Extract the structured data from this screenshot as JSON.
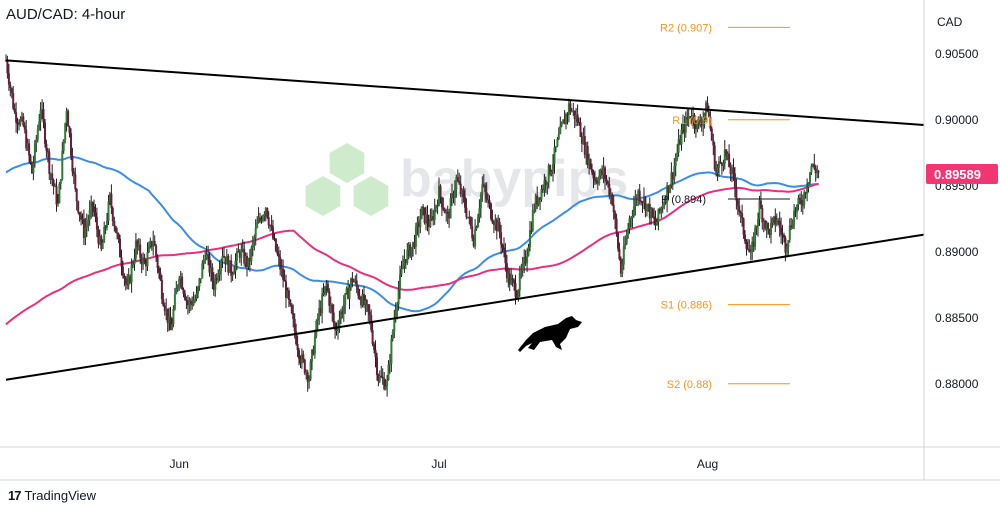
{
  "chart_data": {
    "type": "candlestick",
    "title": "AUD/CAD: 4-hour",
    "currency_label": "CAD",
    "y_ticks": [
      "0.90500",
      "0.90000",
      "0.89500",
      "0.89000",
      "0.88500",
      "0.88000"
    ],
    "x_ticks": [
      "Jun",
      "Jul",
      "Aug"
    ],
    "current_price": "0.89589",
    "current_price_color": "#f23673",
    "ma_fast_color": "#3b8ee8",
    "ma_slow_color": "#ea2f7e",
    "trendline_color": "#000000",
    "level_color": "#f7931a",
    "levels": [
      {
        "label": "R2 (0.907)",
        "value": 0.907
      },
      {
        "label": "R1 (0.9)",
        "value": 0.9
      },
      {
        "label": "P (0.894)",
        "value": 0.894
      },
      {
        "label": "S1 (0.886)",
        "value": 0.886
      },
      {
        "label": "S2 (0.88)",
        "value": 0.88
      }
    ],
    "trendlines": [
      {
        "name": "upper",
        "from": [
          "May 12",
          0.9045
        ],
        "to": [
          "Aug 26",
          0.8996
        ]
      },
      {
        "name": "lower",
        "from": [
          "May 12",
          0.8803
        ],
        "to": [
          "Aug 26",
          0.8913
        ]
      }
    ],
    "ylim": [
      0.8765,
      0.9068
    ],
    "xlim": [
      "May 12",
      "Aug 26"
    ],
    "close_path": [
      [
        "May 12",
        0.9045
      ],
      [
        "May 13",
        0.9005
      ],
      [
        "May 14",
        0.8995
      ],
      [
        "May 15",
        0.896
      ],
      [
        "May 16",
        0.901
      ],
      [
        "May 17",
        0.8965
      ],
      [
        "May 18",
        0.8935
      ],
      [
        "May 19",
        0.901
      ],
      [
        "May 20",
        0.8945
      ],
      [
        "May 21",
        0.8915
      ],
      [
        "May 22",
        0.8935
      ],
      [
        "May 23",
        0.89
      ],
      [
        "May 24",
        0.894
      ],
      [
        "May 25",
        0.8905
      ],
      [
        "May 26",
        0.887
      ],
      [
        "May 27",
        0.8905
      ],
      [
        "May 28",
        0.889
      ],
      [
        "May 29",
        0.891
      ],
      [
        "May 30",
        0.887
      ],
      [
        "May 31",
        0.884
      ],
      [
        "Jun 1",
        0.8885
      ],
      [
        "Jun 2",
        0.886
      ],
      [
        "Jun 3",
        0.8865
      ],
      [
        "Jun 4",
        0.89
      ],
      [
        "Jun 5",
        0.8875
      ],
      [
        "Jun 6",
        0.89
      ],
      [
        "Jun 7",
        0.8885
      ],
      [
        "Jun 8",
        0.89
      ],
      [
        "Jun 9",
        0.889
      ],
      [
        "Jun 10",
        0.892
      ],
      [
        "Jun 11",
        0.8935
      ],
      [
        "Jun 12",
        0.8905
      ],
      [
        "Jun 13",
        0.888
      ],
      [
        "Jun 14",
        0.885
      ],
      [
        "Jun 15",
        0.882
      ],
      [
        "Jun 16",
        0.8805
      ],
      [
        "Jun 17",
        0.885
      ],
      [
        "Jun 18",
        0.8875
      ],
      [
        "Jun 19",
        0.884
      ],
      [
        "Jun 20",
        0.886
      ],
      [
        "Jun 21",
        0.888
      ],
      [
        "Jun 22",
        0.8865
      ],
      [
        "Jun 23",
        0.885
      ],
      [
        "Jun 24",
        0.8805
      ],
      [
        "Jun 25",
        0.88
      ],
      [
        "Jun 26",
        0.886
      ],
      [
        "Jun 27",
        0.8895
      ],
      [
        "Jun 28",
        0.8905
      ],
      [
        "Jun 29",
        0.893
      ],
      [
        "Jun 30",
        0.892
      ],
      [
        "Jul 1",
        0.8945
      ],
      [
        "Jul 2",
        0.8925
      ],
      [
        "Jul 3",
        0.8955
      ],
      [
        "Jul 4",
        0.8935
      ],
      [
        "Jul 5",
        0.891
      ],
      [
        "Jul 6",
        0.895
      ],
      [
        "Jul 7",
        0.893
      ],
      [
        "Jul 8",
        0.8915
      ],
      [
        "Jul 9",
        0.888
      ],
      [
        "Jul 10",
        0.887
      ],
      [
        "Jul 11",
        0.8895
      ],
      [
        "Jul 12",
        0.8935
      ],
      [
        "Jul 13",
        0.895
      ],
      [
        "Jul 14",
        0.8965
      ],
      [
        "Jul 15",
        0.899
      ],
      [
        "Jul 16",
        0.901
      ],
      [
        "Jul 17",
        0.9
      ],
      [
        "Jul 18",
        0.8975
      ],
      [
        "Jul 19",
        0.8955
      ],
      [
        "Jul 20",
        0.896
      ],
      [
        "Jul 21",
        0.894
      ],
      [
        "Jul 22",
        0.8885
      ],
      [
        "Jul 23",
        0.8925
      ],
      [
        "Jul 24",
        0.8945
      ],
      [
        "Jul 25",
        0.8935
      ],
      [
        "Jul 26",
        0.892
      ],
      [
        "Jul 27",
        0.894
      ],
      [
        "Jul 28",
        0.896
      ],
      [
        "Jul 29",
        0.899
      ],
      [
        "Jul 30",
        0.9005
      ],
      [
        "Jul 31",
        0.8995
      ],
      [
        "Aug 1",
        0.901
      ],
      [
        "Aug 2",
        0.896
      ],
      [
        "Aug 3",
        0.8975
      ],
      [
        "Aug 4",
        0.8955
      ],
      [
        "Aug 5",
        0.892
      ],
      [
        "Aug 6",
        0.8895
      ],
      [
        "Aug 7",
        0.8935
      ],
      [
        "Aug 8",
        0.8915
      ],
      [
        "Aug 9",
        0.8925
      ],
      [
        "Aug 10",
        0.8905
      ],
      [
        "Aug 11",
        0.893
      ],
      [
        "Aug 12",
        0.894
      ],
      [
        "Aug 13",
        0.8965
      ],
      [
        "Aug 14",
        0.8959
      ]
    ]
  },
  "watermark": {
    "text": "babypips",
    "color": "#a5dca0"
  },
  "footer": {
    "brand_text": "TradingView",
    "brand_logo": "17"
  }
}
